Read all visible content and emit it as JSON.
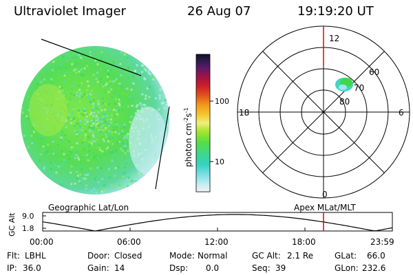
{
  "header": {
    "title": "Ultraviolet Imager",
    "date": "26 Aug 07",
    "time": "19:19:20 UT"
  },
  "colorbar": {
    "ticks": [
      "100",
      "10"
    ],
    "unit": "photon cm",
    "unit_exp1": "-2",
    "unit_s": "s",
    "unit_exp2": "-1"
  },
  "polar": {
    "hours": [
      "12",
      "18",
      "6",
      "0"
    ],
    "latitudes": [
      "60",
      "70",
      "80"
    ]
  },
  "altitude_plot": {
    "left_label": "Geographic Lat/Lon",
    "right_label": "Apex MLat/MLT",
    "ylabel": "GC Alt",
    "yticks": [
      "9.0",
      "1.8"
    ],
    "xticks": [
      "00:00",
      "06:00",
      "12:00",
      "18:00",
      "23:59"
    ]
  },
  "info": {
    "flt_label": "Flt:",
    "flt": "LBHL",
    "ip_label": "IP:",
    "ip": "36.0",
    "door_label": "Door:",
    "door": "Closed",
    "gain_label": "Gain:",
    "gain": "14",
    "mode_label": "Mode:",
    "mode": "Normal",
    "dsp_label": "Dsp:",
    "dsp": "0.0",
    "gcalt_label": "GC Alt:",
    "gcalt": "2.1 Re",
    "seq_label": "Seq:",
    "seq": "39",
    "glat_label": "GLat:",
    "glat": "66.0",
    "glon_label": "GLon:",
    "glon": "232.6"
  },
  "colors": {
    "earth_green": "#4fe04a",
    "earth_light": "#aef08a",
    "edge_cyan": "#58dde0",
    "marker_red": "#e00000"
  }
}
